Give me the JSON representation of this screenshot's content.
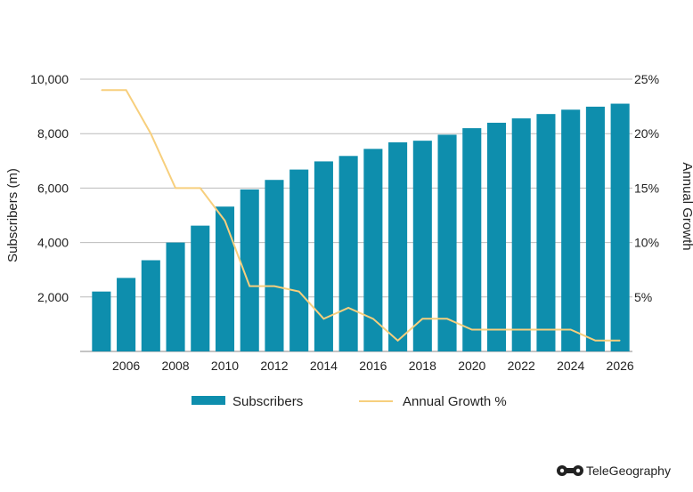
{
  "chart_data": {
    "type": "bar",
    "categories": [
      "2005",
      "2006",
      "2007",
      "2008",
      "2009",
      "2010",
      "2011",
      "2012",
      "2013",
      "2014",
      "2015",
      "2016",
      "2017",
      "2018",
      "2019",
      "2020",
      "2021",
      "2022",
      "2023",
      "2024",
      "2025",
      "2026"
    ],
    "x_tick_labels": [
      "2006",
      "2008",
      "2010",
      "2012",
      "2014",
      "2016",
      "2018",
      "2020",
      "2022",
      "2024",
      "2026"
    ],
    "series": [
      {
        "name": "Subscribers",
        "type": "bar",
        "axis": "left",
        "color": "#0e8ead",
        "values": [
          2200,
          2700,
          3350,
          4000,
          4620,
          5320,
          5950,
          6300,
          6680,
          6980,
          7180,
          7440,
          7680,
          7740,
          7960,
          8200,
          8400,
          8560,
          8720,
          8880,
          8990,
          9100
        ]
      },
      {
        "name": "Annual Growth %",
        "type": "line",
        "axis": "right",
        "color": "#f7cf7d",
        "values": [
          24,
          24,
          20,
          15,
          15,
          12,
          6,
          6,
          5.5,
          3,
          4,
          3,
          1,
          3,
          3,
          2,
          2,
          2,
          2,
          2,
          1,
          1
        ]
      }
    ],
    "y_left": {
      "label": "Subscribers (m)",
      "ylim": [
        0,
        10000
      ],
      "ticks": [
        2000,
        4000,
        6000,
        8000,
        10000
      ],
      "tick_labels": [
        "2,000",
        "4,000",
        "6,000",
        "8,000",
        "10,000"
      ]
    },
    "y_right": {
      "label": "Annual Growth",
      "ylim": [
        0,
        25
      ],
      "ticks": [
        5,
        10,
        15,
        20,
        25
      ],
      "tick_labels": [
        "5%",
        "10%",
        "15%",
        "20%",
        "25%"
      ]
    },
    "grid": true,
    "legend": {
      "position": "bottom",
      "items": [
        "Subscribers",
        "Annual Growth %"
      ]
    }
  },
  "branding": {
    "logo_text": "TeleGeography",
    "logo_icon": "telegeography-logo-icon"
  }
}
